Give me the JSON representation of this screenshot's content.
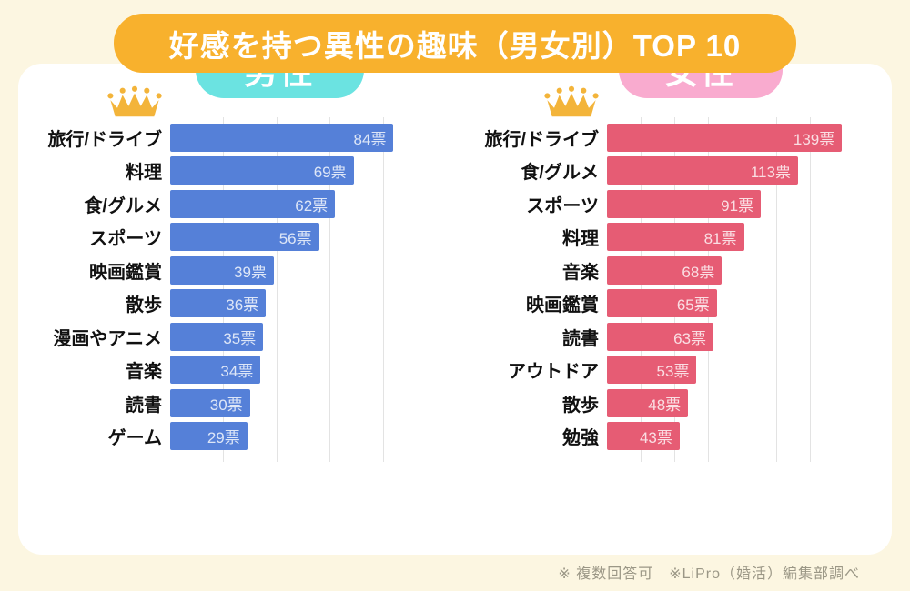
{
  "page": {
    "background_color": "#FCF6E1",
    "panel_color": "#FFFFFF"
  },
  "header": {
    "title": "好感を持つ異性の趣味（男女別）TOP 10",
    "badge_color": "#F8B12D",
    "text_color": "#FFFFFF"
  },
  "footnote": "※ 複数回答可　※LiPro（婚活）編集部調べ",
  "icons": {
    "crown_color": "#F3B43A"
  },
  "chart_data": [
    {
      "type": "bar",
      "orientation": "horizontal",
      "title": "男性",
      "title_badge_color": "#6BE3E1",
      "bar_color": "#5580D8",
      "value_text_color": "rgba(255,255,255,0.8)",
      "value_suffix": "票",
      "categories": [
        "旅行/ドライブ",
        "料理",
        "食/グルメ",
        "スポーツ",
        "映画鑑賞",
        "散歩",
        "漫画やアニメ",
        "音楽",
        "読書",
        "ゲーム"
      ],
      "values": [
        84,
        69,
        62,
        56,
        39,
        36,
        35,
        34,
        30,
        29
      ],
      "xlim": [
        0,
        90
      ],
      "gridline_step": 20,
      "grid_color": "#E3E3E3",
      "legend": "none",
      "crown_on_first": true
    },
    {
      "type": "bar",
      "orientation": "horizontal",
      "title": "女性",
      "title_badge_color": "#F9ABCF",
      "bar_color": "#E65C74",
      "value_text_color": "rgba(255,255,255,0.8)",
      "value_suffix": "票",
      "categories": [
        "旅行/ドライブ",
        "食/グルメ",
        "スポーツ",
        "料理",
        "音楽",
        "映画鑑賞",
        "読書",
        "アウトドア",
        "散歩",
        "勉強"
      ],
      "values": [
        139,
        113,
        91,
        81,
        68,
        65,
        63,
        53,
        48,
        43
      ],
      "xlim": [
        0,
        155
      ],
      "gridline_step": 20,
      "grid_color": "#E3E3E3",
      "legend": "none",
      "crown_on_first": true
    }
  ]
}
